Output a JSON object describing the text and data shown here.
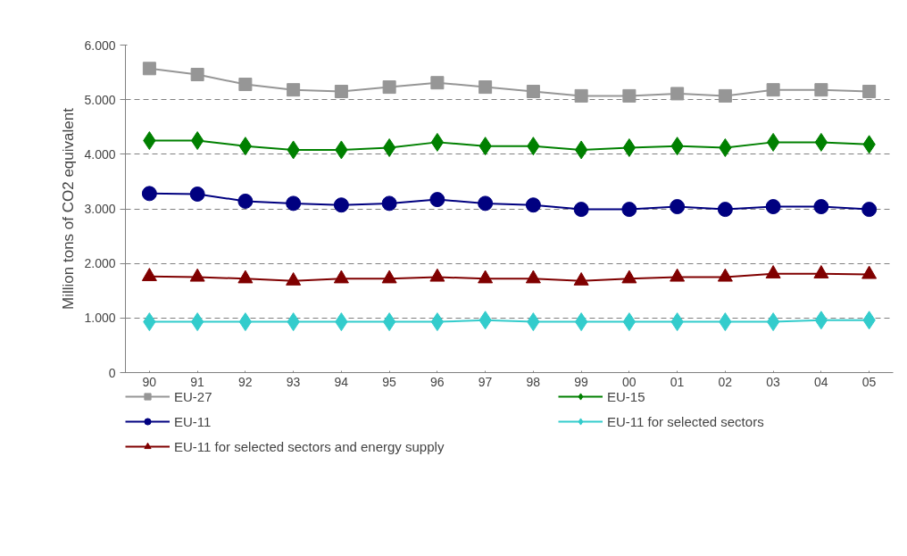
{
  "chart_data": {
    "type": "line",
    "ylabel": "Million tons of CO2 equivalent",
    "categories": [
      "90",
      "91",
      "92",
      "93",
      "94",
      "95",
      "96",
      "97",
      "98",
      "99",
      "00",
      "01",
      "02",
      "03",
      "04",
      "05"
    ],
    "ylim": [
      0,
      6000
    ],
    "yticks": [
      {
        "value": 0,
        "label": "0"
      },
      {
        "value": 1000,
        "label": "1.000"
      },
      {
        "value": 2000,
        "label": "2.000"
      },
      {
        "value": 3000,
        "label": "3.000"
      },
      {
        "value": 4000,
        "label": "4.000"
      },
      {
        "value": 5000,
        "label": "5.000"
      },
      {
        "value": 6000,
        "label": "6.000"
      }
    ],
    "grid": "y",
    "legend": "bottom",
    "line_style": "solid",
    "series": [
      {
        "name": "EU-27",
        "color": "#969696",
        "marker": "square",
        "values": [
          5570,
          5460,
          5280,
          5180,
          5150,
          5230,
          5310,
          5230,
          5150,
          5070,
          5070,
          5110,
          5070,
          5180,
          5180,
          5150
        ]
      },
      {
        "name": "EU-15",
        "color": "#008000",
        "marker": "diamond",
        "values": [
          4250,
          4250,
          4150,
          4080,
          4080,
          4120,
          4220,
          4150,
          4150,
          4080,
          4120,
          4150,
          4120,
          4220,
          4220,
          4180
        ]
      },
      {
        "name": "EU-11",
        "color": "#000080",
        "marker": "circle",
        "values": [
          3280,
          3270,
          3140,
          3100,
          3070,
          3100,
          3170,
          3100,
          3070,
          2990,
          2990,
          3040,
          2990,
          3040,
          3040,
          2990
        ]
      },
      {
        "name": "EU-11 for selected sectors",
        "color": "#33cccc",
        "marker": "diamond",
        "values": [
          930,
          930,
          930,
          930,
          930,
          930,
          930,
          960,
          930,
          930,
          930,
          930,
          930,
          930,
          960,
          960
        ]
      },
      {
        "name": "EU-11 for selected sectors and energy supply",
        "color": "#800000",
        "marker": "triangle",
        "values": [
          1760,
          1750,
          1720,
          1680,
          1720,
          1720,
          1750,
          1720,
          1720,
          1680,
          1720,
          1750,
          1750,
          1810,
          1810,
          1800
        ]
      }
    ]
  }
}
